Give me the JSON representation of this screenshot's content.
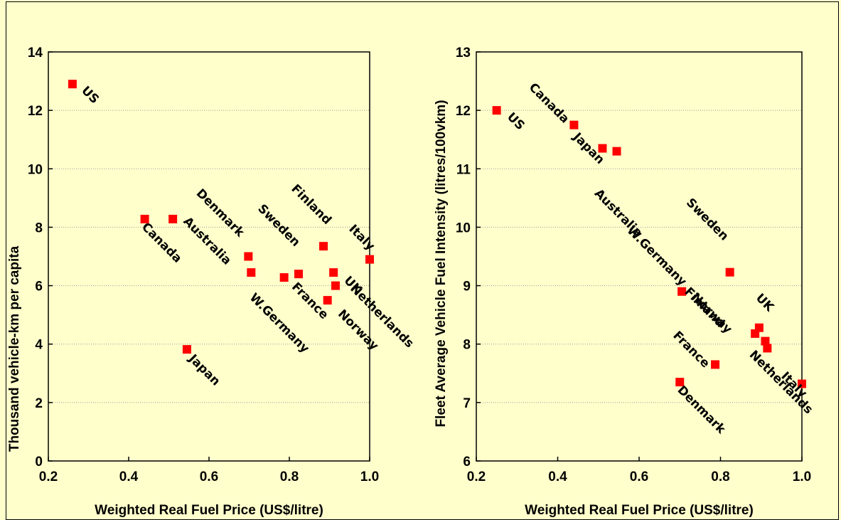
{
  "chart_data": [
    {
      "type": "scatter",
      "title": "",
      "xlabel": "Weighted Real Fuel Price (US$/litre)",
      "ylabel": "Thousand vehicle-km per capita",
      "xlim": [
        0.2,
        1.0
      ],
      "ylim": [
        0,
        14
      ],
      "x_ticks": [
        "0.2",
        "0.4",
        "0.6",
        "0.8",
        "1.0"
      ],
      "y_ticks": [
        "0",
        "2",
        "4",
        "6",
        "8",
        "10",
        "12",
        "14"
      ],
      "grid": "horizontal-dotted",
      "marker_color": "#ff0000",
      "points": [
        {
          "label": "US",
          "x": 0.26,
          "y": 12.9
        },
        {
          "label": "Canada",
          "x": 0.44,
          "y": 8.28
        },
        {
          "label": "Australia",
          "x": 0.51,
          "y": 8.28
        },
        {
          "label": "Japan",
          "x": 0.545,
          "y": 3.82
        },
        {
          "label": "Denmark",
          "x": 0.698,
          "y": 7.0
        },
        {
          "label": "W.Germany",
          "x": 0.705,
          "y": 6.45
        },
        {
          "label": "France",
          "x": 0.787,
          "y": 6.28
        },
        {
          "label": "Sweden",
          "x": 0.823,
          "y": 6.4
        },
        {
          "label": "Finland",
          "x": 0.885,
          "y": 7.35
        },
        {
          "label": "Norway",
          "x": 0.895,
          "y": 5.5
        },
        {
          "label": "UK",
          "x": 0.91,
          "y": 6.45
        },
        {
          "label": "Netherlands",
          "x": 0.915,
          "y": 6.0
        },
        {
          "label": "Italy",
          "x": 1.0,
          "y": 6.9
        }
      ]
    },
    {
      "type": "scatter",
      "title": "",
      "xlabel": "Weighted Real Fuel Price (US$/litre)",
      "ylabel": "Fleet Average Vehicle Fuel Intensity (litres/100vkm)",
      "xlim": [
        0.2,
        1.0
      ],
      "ylim": [
        6,
        13
      ],
      "x_ticks": [
        "0.2",
        "0.4",
        "0.6",
        "0.8",
        "1.0"
      ],
      "y_ticks": [
        "6",
        "7",
        "8",
        "9",
        "10",
        "11",
        "12",
        "13"
      ],
      "grid": "horizontal-dotted",
      "marker_color": "#ff0000",
      "points": [
        {
          "label": "US",
          "x": 0.25,
          "y": 12.0
        },
        {
          "label": "Canada",
          "x": 0.44,
          "y": 11.75
        },
        {
          "label": "Japan",
          "x": 0.51,
          "y": 11.35
        },
        {
          "label": "Australia",
          "x": 0.545,
          "y": 11.3
        },
        {
          "label": "W.Germany",
          "x": 0.705,
          "y": 8.9
        },
        {
          "label": "Denmark",
          "x": 0.7,
          "y": 7.35
        },
        {
          "label": "France",
          "x": 0.787,
          "y": 7.65
        },
        {
          "label": "Sweden",
          "x": 0.823,
          "y": 9.23
        },
        {
          "label": "Finland",
          "x": 0.885,
          "y": 8.18
        },
        {
          "label": "Norway",
          "x": 0.895,
          "y": 8.28
        },
        {
          "label": "UK",
          "x": 0.91,
          "y": 8.05
        },
        {
          "label": "Netherlands",
          "x": 0.915,
          "y": 7.93
        },
        {
          "label": "Italy",
          "x": 1.0,
          "y": 7.32
        }
      ]
    }
  ]
}
